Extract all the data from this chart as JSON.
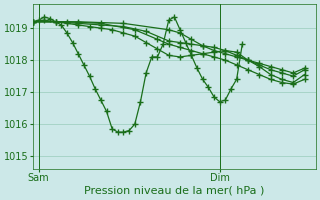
{
  "background_color": "#cce8e8",
  "grid_color": "#99ccbb",
  "line_color": "#1a6e1a",
  "marker": "+",
  "marker_size": 4,
  "linewidth": 0.9,
  "xlabel": "Pression niveau de la mer( hPa )",
  "xlabel_fontsize": 8,
  "yticks": [
    1015,
    1016,
    1017,
    1018,
    1019
  ],
  "ylim": [
    1014.6,
    1019.75
  ],
  "xlim": [
    0,
    50
  ],
  "sam_x": 1,
  "dim_x": 33,
  "tick_label_fontsize": 7,
  "series": [
    [
      0,
      1019.2,
      1,
      1019.25,
      2,
      1019.35,
      3,
      1019.3,
      4,
      1019.2,
      5,
      1019.1,
      6,
      1018.85,
      7,
      1018.55,
      8,
      1018.2,
      9,
      1017.85,
      10,
      1017.5,
      11,
      1017.1,
      12,
      1016.75,
      13,
      1016.4,
      14,
      1015.85,
      15,
      1015.75,
      16,
      1015.75,
      17,
      1015.8,
      18,
      1016.0,
      19,
      1016.7,
      20,
      1017.6,
      21,
      1018.1,
      22,
      1018.1,
      23,
      1018.5,
      24,
      1019.25,
      25,
      1019.35,
      26,
      1018.95,
      27,
      1018.55,
      28,
      1018.15,
      29,
      1017.75,
      30,
      1017.4,
      31,
      1017.15,
      32,
      1016.85,
      33,
      1016.7,
      34,
      1016.75,
      35,
      1017.1,
      36,
      1017.4,
      37,
      1018.5
    ],
    [
      0,
      1019.2,
      2,
      1019.25,
      4,
      1019.2,
      6,
      1019.15,
      8,
      1019.1,
      10,
      1019.05,
      12,
      1019.0,
      14,
      1018.95,
      16,
      1018.85,
      18,
      1018.75,
      20,
      1018.55,
      22,
      1018.35,
      24,
      1018.15,
      26,
      1018.1,
      28,
      1018.15,
      30,
      1018.2,
      32,
      1018.25,
      34,
      1018.3,
      36,
      1018.25,
      38,
      1018.0,
      40,
      1017.8,
      42,
      1017.55,
      44,
      1017.4,
      46,
      1017.3,
      48,
      1017.55
    ],
    [
      0,
      1019.2,
      4,
      1019.2,
      8,
      1019.15,
      12,
      1019.1,
      16,
      1019.05,
      20,
      1018.9,
      24,
      1018.6,
      26,
      1018.55,
      28,
      1018.5,
      30,
      1018.45,
      32,
      1018.4,
      34,
      1018.3,
      36,
      1018.15,
      38,
      1018.0,
      40,
      1017.85,
      42,
      1017.7,
      44,
      1017.6,
      46,
      1017.5,
      48,
      1017.7
    ],
    [
      0,
      1019.2,
      6,
      1019.2,
      12,
      1019.15,
      18,
      1018.95,
      22,
      1018.65,
      24,
      1018.5,
      26,
      1018.4,
      28,
      1018.3,
      30,
      1018.2,
      32,
      1018.1,
      34,
      1018.0,
      36,
      1017.85,
      38,
      1017.7,
      40,
      1017.55,
      42,
      1017.4,
      44,
      1017.3,
      46,
      1017.25,
      48,
      1017.4
    ],
    [
      0,
      1019.2,
      8,
      1019.2,
      16,
      1019.15,
      24,
      1018.95,
      26,
      1018.85,
      28,
      1018.65,
      30,
      1018.45,
      32,
      1018.3,
      34,
      1018.2,
      36,
      1018.1,
      38,
      1018.0,
      40,
      1017.9,
      42,
      1017.8,
      44,
      1017.7,
      46,
      1017.6,
      48,
      1017.75
    ]
  ]
}
